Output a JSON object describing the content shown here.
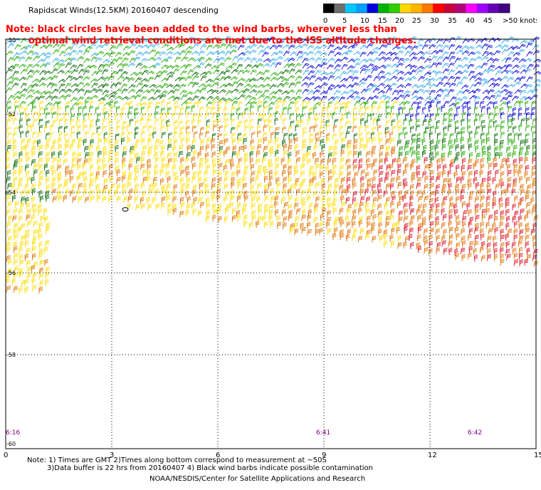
{
  "title": "Rapidscat Winds(12.5KM) 20160407 descending",
  "note_lines": [
    "Note: black circles have been added to the wind barbs, wherever less than",
    "optimal wind retrieval conditions are met due to the ISS altitude changes."
  ],
  "legend": {
    "unit": "knots",
    "labels": [
      "0",
      "5",
      "10",
      "15",
      "20",
      "25",
      "30",
      "35",
      "40",
      "45",
      ">50 knots"
    ],
    "colors": [
      "#000000",
      "#6e6e6e",
      "#00c8ff",
      "#00a0ff",
      "#0000dc",
      "#00b400",
      "#33cc00",
      "#ffd700",
      "#ffb400",
      "#ff7800",
      "#ff0000",
      "#c8003c",
      "#b40078",
      "#ff00ff",
      "#a000ff",
      "#6400b4",
      "#400080"
    ]
  },
  "y_axis": {
    "labels": [
      "-50",
      "-52",
      "-54",
      "-56",
      "-58",
      "-60"
    ]
  },
  "x_axis": {
    "labels": [
      "0",
      "3",
      "6",
      "9",
      "12",
      "15"
    ]
  },
  "time_labels": [
    "6:16",
    "6:41",
    "6:42"
  ],
  "footnotes": [
    "Note: 1) Times are GMT 2)Times along bottom correspond to measurement at ~50S",
    "3)Data buffer is 22 hrs from 20160407 4) Black wind barbs indicate possible contamination",
    "NOAA/NESDIS/Center for Satellite Applications and Research"
  ],
  "colors": {
    "band_lightblue": "#33aaee",
    "band_blue": "#0000dd",
    "band_green": "#22aa00",
    "band_darkgreen": "#006600",
    "band_yellow": "#ffdd00",
    "band_orange": "#e07000",
    "band_red": "#dd1020",
    "time_label": "#800080",
    "note": "#ff0000"
  }
}
